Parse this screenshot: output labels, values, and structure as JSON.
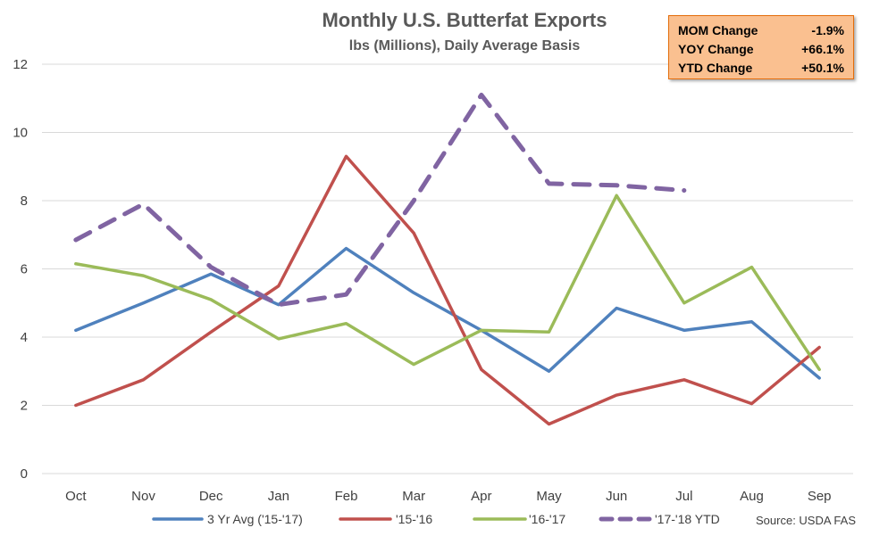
{
  "chart_data": {
    "type": "line",
    "title": "Monthly U.S. Butterfat Exports",
    "subtitle": "lbs (Millions), Daily Average Basis",
    "categories": [
      "Oct",
      "Nov",
      "Dec",
      "Jan",
      "Feb",
      "Mar",
      "Apr",
      "May",
      "Jun",
      "Jul",
      "Aug",
      "Sep"
    ],
    "ylim": [
      0,
      12
    ],
    "yticks": [
      0,
      2,
      4,
      6,
      8,
      10,
      12
    ],
    "grid": true,
    "legend_position": "bottom",
    "series": [
      {
        "name": "3 Yr Avg ('15-'17)",
        "color": "#4f81bd",
        "dashed": false,
        "values": [
          4.2,
          5.0,
          5.85,
          4.95,
          6.6,
          5.3,
          4.2,
          3.0,
          4.85,
          4.2,
          4.45,
          2.8
        ]
      },
      {
        "name": "'15-'16",
        "color": "#c0504d",
        "dashed": false,
        "values": [
          2.0,
          2.75,
          4.15,
          5.5,
          9.3,
          7.05,
          3.05,
          1.45,
          2.3,
          2.75,
          2.05,
          3.7
        ]
      },
      {
        "name": "'16-'17",
        "color": "#9bbb59",
        "dashed": false,
        "values": [
          6.15,
          5.8,
          5.1,
          3.95,
          4.4,
          3.2,
          4.2,
          4.15,
          8.15,
          5.0,
          6.05,
          3.05
        ]
      },
      {
        "name": "'17-'18 YTD",
        "color": "#8064a2",
        "dashed": true,
        "values": [
          6.85,
          7.9,
          6.05,
          4.95,
          5.25,
          8.0,
          11.1,
          8.5,
          8.45,
          8.3,
          null,
          null
        ]
      }
    ],
    "source": "Source: USDA FAS"
  },
  "stats": [
    {
      "label": "MOM Change",
      "value": "-1.9%"
    },
    {
      "label": "YOY Change",
      "value": "+66.1%"
    },
    {
      "label": "YTD Change",
      "value": "+50.1%"
    }
  ],
  "colors": {
    "stat_box_bg": "#fac090",
    "stat_box_border": "#e46c0a"
  }
}
